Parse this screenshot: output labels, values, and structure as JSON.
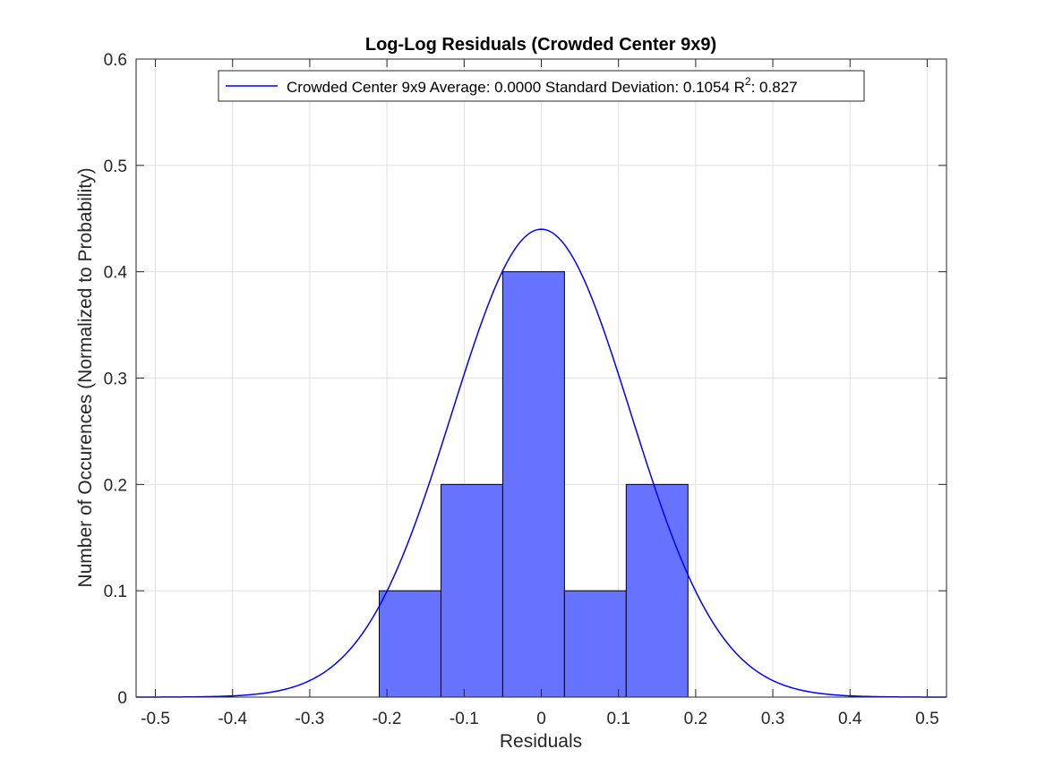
{
  "chart_data": {
    "type": "bar",
    "title": "Log-Log Residuals (Crowded Center 9x9)",
    "xlabel": "Residuals",
    "ylabel": "Number of Occurences (Normalized to Probability)",
    "xlim": [
      -0.525,
      0.525
    ],
    "ylim": [
      0,
      0.6
    ],
    "xticks": [
      -0.5,
      -0.4,
      -0.3,
      -0.2,
      -0.1,
      0,
      0.1,
      0.2,
      0.3,
      0.4,
      0.5
    ],
    "xtick_labels": [
      "-0.5",
      "-0.4",
      "-0.3",
      "-0.2",
      "-0.1",
      "0",
      "0.1",
      "0.2",
      "0.3",
      "0.4",
      "0.5"
    ],
    "yticks": [
      0,
      0.1,
      0.2,
      0.3,
      0.4,
      0.5,
      0.6
    ],
    "ytick_labels": [
      "0",
      "0.1",
      "0.2",
      "0.3",
      "0.4",
      "0.5",
      "0.6"
    ],
    "grid": true,
    "histogram": {
      "bin_edges": [
        -0.21,
        -0.13,
        -0.05,
        0.03,
        0.11,
        0.19
      ],
      "values": [
        0.1,
        0.2,
        0.4,
        0.1,
        0.2
      ],
      "color": "#6673ff"
    },
    "fit": {
      "type": "normal",
      "mean": 0.0,
      "std": 0.1054,
      "scale": 0.116,
      "peak": 0.44,
      "color": "#0000ff"
    },
    "legend": {
      "placement": "top",
      "text_main": "Crowded Center 9x9 Average: 0.0000 Standard Deviation: 0.1054 R",
      "text_sup": "2",
      "text_tail": ": 0.827"
    }
  }
}
